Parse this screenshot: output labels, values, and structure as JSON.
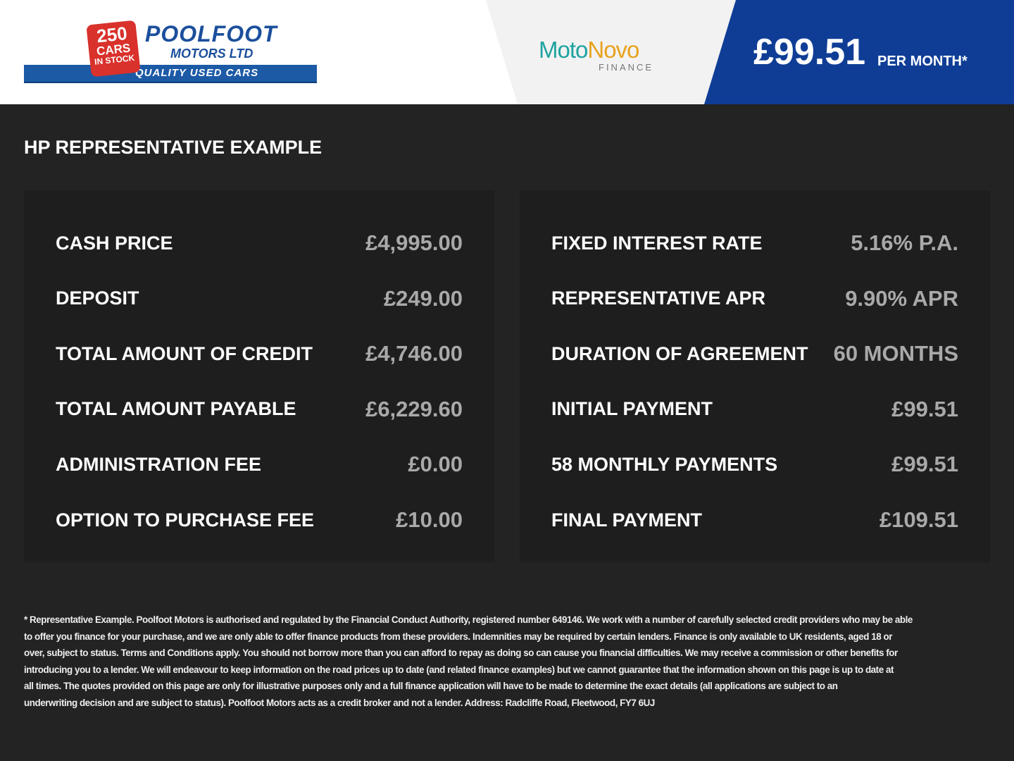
{
  "header": {
    "logo": {
      "badge_number": "250",
      "badge_line1": "CARS",
      "badge_line2": "IN STOCK",
      "name": "POOLFOOT",
      "sub": "MOTORS LTD",
      "tagline": "QUALITY USED CARS"
    },
    "finance_logo": {
      "part1": "Moto",
      "part2": "Novo",
      "sub": "FINANCE"
    },
    "monthly_price": "£99.51",
    "per_month": "PER MONTH*",
    "colors": {
      "blue": "#0f3d96",
      "teal": "#1fa3a0",
      "orange": "#e8a21c",
      "red": "#d9312b"
    }
  },
  "title": "HP REPRESENTATIVE EXAMPLE",
  "left": [
    {
      "label": "CASH PRICE",
      "value": "£4,995.00"
    },
    {
      "label": "DEPOSIT",
      "value": "£249.00"
    },
    {
      "label": "TOTAL AMOUNT OF CREDIT",
      "value": "£4,746.00"
    },
    {
      "label": "TOTAL AMOUNT PAYABLE",
      "value": "£6,229.60"
    },
    {
      "label": "ADMINISTRATION FEE",
      "value": "£0.00"
    },
    {
      "label": "OPTION TO PURCHASE FEE",
      "value": "£10.00"
    }
  ],
  "right": [
    {
      "label": "FIXED INTEREST RATE",
      "value": "5.16% P.A."
    },
    {
      "label": "REPRESENTATIVE APR",
      "value": "9.90% APR"
    },
    {
      "label": "DURATION OF AGREEMENT",
      "value": "60 MONTHS"
    },
    {
      "label": "INITIAL PAYMENT",
      "value": "£99.51"
    },
    {
      "label": "58 MONTHLY PAYMENTS",
      "value": "£99.51"
    },
    {
      "label": "FINAL PAYMENT",
      "value": "£109.51"
    }
  ],
  "disclaimer": [
    "* Representative Example. Poolfoot Motors is authorised and regulated by the Financial Conduct Authority, registered number 649146. We work with a number of carefully selected credit providers who may be able",
    "to offer you finance for your purchase, and we are only able to offer finance products from these providers. Indemnities may be required by certain lenders. Finance is only available to UK residents, aged 18 or",
    "over, subject to status. Terms and Conditions apply. You should not borrow more than you can afford to repay as doing so can cause you financial difficulties. We may receive a commission or other benefits for",
    "introducing you to a lender. We will endeavour to keep information on the road prices up to date (and related finance examples) but we cannot guarantee that the information shown on this page is up to date at",
    "all times. The quotes provided on this page are only for illustrative purposes only and a full finance application will have to be made to determine the exact details (all applications are subject to an",
    "underwriting decision and are subject to status). Poolfoot Motors acts as a credit broker and not a lender. Address: Radcliffe Road, Fleetwood, FY7 6UJ"
  ]
}
